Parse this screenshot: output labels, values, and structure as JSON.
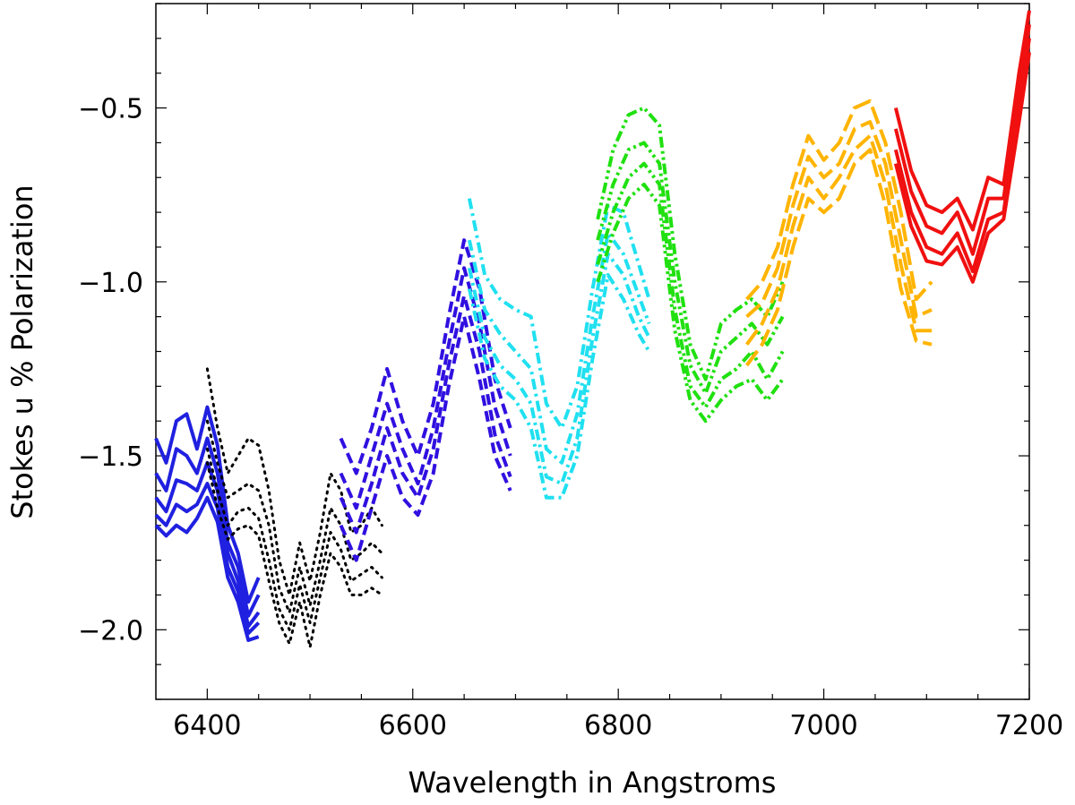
{
  "chart_data": {
    "type": "line",
    "title": "",
    "xlabel": "Wavelength in Angstroms",
    "ylabel": "Stokes u % Polarization",
    "xlim": [
      6350,
      7200
    ],
    "ylim": [
      -2.2,
      -0.2
    ],
    "x_ticks": [
      6400,
      6600,
      6800,
      7000,
      7200
    ],
    "x_tick_labels": [
      "6400",
      "6600",
      "6800",
      "7000",
      "7200"
    ],
    "y_ticks": [
      -2.0,
      -1.5,
      -1.0,
      -0.5
    ],
    "y_tick_labels": [
      "−2.0",
      "−1.5",
      "−1.0",
      "−0.5"
    ],
    "grid": false,
    "legend": "none",
    "series": [
      {
        "style": "solid",
        "color": "#2020e0",
        "x": [
          6350,
          6360,
          6370,
          6380,
          6390,
          6400,
          6410,
          6420,
          6430,
          6440,
          6450
        ],
        "lines": [
          [
            -1.45,
            -1.52,
            -1.4,
            -1.38,
            -1.48,
            -1.36,
            -1.47,
            -1.7,
            -1.78,
            -1.92,
            -1.85
          ],
          [
            -1.55,
            -1.6,
            -1.48,
            -1.5,
            -1.55,
            -1.45,
            -1.55,
            -1.75,
            -1.82,
            -1.96,
            -1.9
          ],
          [
            -1.62,
            -1.66,
            -1.57,
            -1.58,
            -1.6,
            -1.52,
            -1.6,
            -1.78,
            -1.86,
            -1.99,
            -1.95
          ],
          [
            -1.67,
            -1.7,
            -1.64,
            -1.66,
            -1.64,
            -1.58,
            -1.65,
            -1.82,
            -1.89,
            -2.01,
            -1.98
          ],
          [
            -1.7,
            -1.73,
            -1.7,
            -1.72,
            -1.68,
            -1.62,
            -1.69,
            -1.85,
            -1.92,
            -2.03,
            -2.02
          ]
        ]
      },
      {
        "style": "dotted",
        "color": "#000000",
        "x": [
          6400,
          6410,
          6420,
          6430,
          6440,
          6450,
          6460,
          6470,
          6480,
          6490,
          6500,
          6510,
          6520,
          6530,
          6540,
          6550,
          6560,
          6570
        ],
        "lines": [
          [
            -1.25,
            -1.42,
            -1.55,
            -1.5,
            -1.45,
            -1.47,
            -1.6,
            -1.8,
            -1.9,
            -1.75,
            -1.86,
            -1.72,
            -1.55,
            -1.6,
            -1.72,
            -1.7,
            -1.65,
            -1.7
          ],
          [
            -1.4,
            -1.52,
            -1.62,
            -1.6,
            -1.58,
            -1.6,
            -1.7,
            -1.88,
            -1.95,
            -1.82,
            -1.93,
            -1.8,
            -1.65,
            -1.7,
            -1.8,
            -1.78,
            -1.75,
            -1.78
          ],
          [
            -1.48,
            -1.6,
            -1.7,
            -1.66,
            -1.65,
            -1.68,
            -1.8,
            -1.94,
            -2.0,
            -1.87,
            -1.98,
            -1.85,
            -1.72,
            -1.77,
            -1.86,
            -1.84,
            -1.82,
            -1.85
          ],
          [
            -1.52,
            -1.65,
            -1.74,
            -1.71,
            -1.7,
            -1.73,
            -1.86,
            -1.98,
            -2.04,
            -1.92,
            -2.05,
            -1.9,
            -1.78,
            -1.82,
            -1.9,
            -1.9,
            -1.88,
            -1.9
          ]
        ]
      },
      {
        "style": "dashed",
        "color": "#3010e0",
        "x": [
          6530,
          6545,
          6560,
          6575,
          6590,
          6605,
          6620,
          6635,
          6650,
          6665,
          6680,
          6695
        ],
        "lines": [
          [
            -1.45,
            -1.55,
            -1.42,
            -1.25,
            -1.4,
            -1.5,
            -1.35,
            -1.1,
            -0.88,
            -1.02,
            -1.28,
            -1.42
          ],
          [
            -1.55,
            -1.65,
            -1.5,
            -1.35,
            -1.48,
            -1.58,
            -1.42,
            -1.18,
            -0.96,
            -1.12,
            -1.36,
            -1.5
          ],
          [
            -1.62,
            -1.72,
            -1.58,
            -1.42,
            -1.55,
            -1.62,
            -1.48,
            -1.24,
            -1.04,
            -1.2,
            -1.44,
            -1.56
          ],
          [
            -1.7,
            -1.8,
            -1.65,
            -1.5,
            -1.62,
            -1.67,
            -1.55,
            -1.3,
            -1.1,
            -1.28,
            -1.5,
            -1.6
          ]
        ]
      },
      {
        "style": "dashdot",
        "color": "#20e0f0",
        "x": [
          6655,
          6670,
          6685,
          6700,
          6715,
          6730,
          6745,
          6760,
          6775,
          6790,
          6805,
          6820,
          6830
        ],
        "lines": [
          [
            -0.76,
            -0.98,
            -1.05,
            -1.08,
            -1.1,
            -1.35,
            -1.42,
            -1.3,
            -1.02,
            -0.78,
            -0.8,
            -0.95,
            -1.05
          ],
          [
            -0.88,
            -1.08,
            -1.15,
            -1.2,
            -1.25,
            -1.48,
            -1.52,
            -1.38,
            -1.1,
            -0.86,
            -0.92,
            -1.04,
            -1.12
          ],
          [
            -0.96,
            -1.16,
            -1.24,
            -1.28,
            -1.35,
            -1.56,
            -1.58,
            -1.45,
            -1.16,
            -0.92,
            -0.98,
            -1.1,
            -1.16
          ],
          [
            -1.02,
            -1.22,
            -1.3,
            -1.34,
            -1.42,
            -1.62,
            -1.62,
            -1.5,
            -1.22,
            -0.98,
            -1.05,
            -1.15,
            -1.2
          ]
        ]
      },
      {
        "style": "dashdotdot",
        "color": "#20e010",
        "x": [
          6780,
          6795,
          6810,
          6825,
          6840,
          6855,
          6870,
          6885,
          6900,
          6915,
          6930,
          6945,
          6960
        ],
        "lines": [
          [
            -0.82,
            -0.62,
            -0.52,
            -0.5,
            -0.55,
            -0.92,
            -1.18,
            -1.28,
            -1.12,
            -1.08,
            -1.05,
            -1.1,
            -1.0
          ],
          [
            -0.88,
            -0.72,
            -0.62,
            -0.6,
            -0.66,
            -1.0,
            -1.24,
            -1.32,
            -1.2,
            -1.16,
            -1.12,
            -1.18,
            -1.1
          ],
          [
            -0.95,
            -0.8,
            -0.7,
            -0.66,
            -0.72,
            -1.08,
            -1.3,
            -1.36,
            -1.28,
            -1.25,
            -1.2,
            -1.28,
            -1.2
          ],
          [
            -1.0,
            -0.86,
            -0.76,
            -0.72,
            -0.78,
            -1.14,
            -1.34,
            -1.4,
            -1.34,
            -1.3,
            -1.28,
            -1.34,
            -1.28
          ]
        ]
      },
      {
        "style": "longdash",
        "color": "#ffb400",
        "x": [
          6925,
          6940,
          6955,
          6970,
          6985,
          7000,
          7015,
          7030,
          7045,
          7060,
          7075,
          7090,
          7105
        ],
        "lines": [
          [
            -1.05,
            -1.0,
            -0.9,
            -0.72,
            -0.58,
            -0.65,
            -0.6,
            -0.5,
            -0.48,
            -0.6,
            -0.8,
            -1.05,
            -1.0
          ],
          [
            -1.1,
            -1.06,
            -0.96,
            -0.78,
            -0.64,
            -0.7,
            -0.66,
            -0.56,
            -0.54,
            -0.66,
            -0.88,
            -1.1,
            -1.08
          ],
          [
            -1.18,
            -1.12,
            -1.02,
            -0.84,
            -0.7,
            -0.76,
            -0.7,
            -0.62,
            -0.58,
            -0.72,
            -0.95,
            -1.14,
            -1.14
          ],
          [
            -1.24,
            -1.18,
            -1.08,
            -0.9,
            -0.76,
            -0.8,
            -0.76,
            -0.66,
            -0.62,
            -0.78,
            -1.02,
            -1.17,
            -1.18
          ]
        ]
      },
      {
        "style": "solid",
        "color": "#f01010",
        "x": [
          7070,
          7085,
          7100,
          7115,
          7130,
          7145,
          7160,
          7175,
          7190,
          7200
        ],
        "lines": [
          [
            -0.5,
            -0.68,
            -0.78,
            -0.8,
            -0.76,
            -0.85,
            -0.7,
            -0.72,
            -0.4,
            -0.22
          ],
          [
            -0.56,
            -0.74,
            -0.84,
            -0.86,
            -0.8,
            -0.92,
            -0.76,
            -0.76,
            -0.46,
            -0.26
          ],
          [
            -0.62,
            -0.8,
            -0.9,
            -0.92,
            -0.86,
            -0.97,
            -0.82,
            -0.8,
            -0.5,
            -0.3
          ],
          [
            -0.66,
            -0.84,
            -0.94,
            -0.95,
            -0.9,
            -1.0,
            -0.86,
            -0.82,
            -0.54,
            -0.34
          ]
        ]
      }
    ]
  }
}
